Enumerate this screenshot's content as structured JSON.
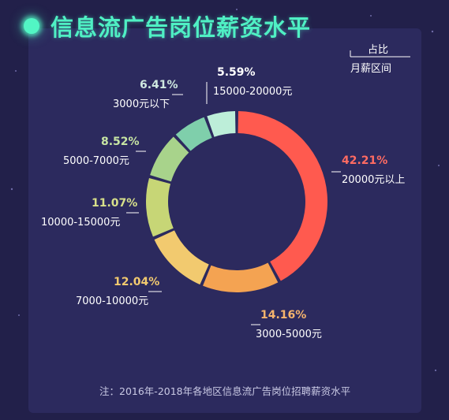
{
  "title": "信息流广告岗位薪资水平",
  "legend": {
    "ratio_label": "占比",
    "range_label": "月薪区间"
  },
  "note": "注：2016年-2018年各地区信息流广告岗位招聘薪资水平",
  "colors": {
    "background": "#22204a",
    "panel": "#2c2a5e",
    "title": "#4ff0c4",
    "accent_dot": "#52f5c4"
  },
  "chart_data": {
    "type": "pie",
    "style": "donut",
    "slices": [
      {
        "label": "20000元以上",
        "value": 42.21,
        "percent_text": "42.21%",
        "color": "#ff5a4f"
      },
      {
        "label": "3000-5000元",
        "value": 14.16,
        "percent_text": "14.16%",
        "color": "#f4a352"
      },
      {
        "label": "7000-10000元",
        "value": 12.04,
        "percent_text": "12.04%",
        "color": "#f2ca6f"
      },
      {
        "label": "10000-15000元",
        "value": 11.07,
        "percent_text": "11.07%",
        "color": "#c7d676"
      },
      {
        "label": "5000-7000元",
        "value": 8.52,
        "percent_text": "8.52%",
        "color": "#a8d38b"
      },
      {
        "label": "3000元以下",
        "value": 6.41,
        "percent_text": "6.41%",
        "color": "#7fcfab"
      },
      {
        "label": "15000-20000元",
        "value": 5.59,
        "percent_text": "5.59%",
        "color": "#bdeed9"
      }
    ]
  }
}
